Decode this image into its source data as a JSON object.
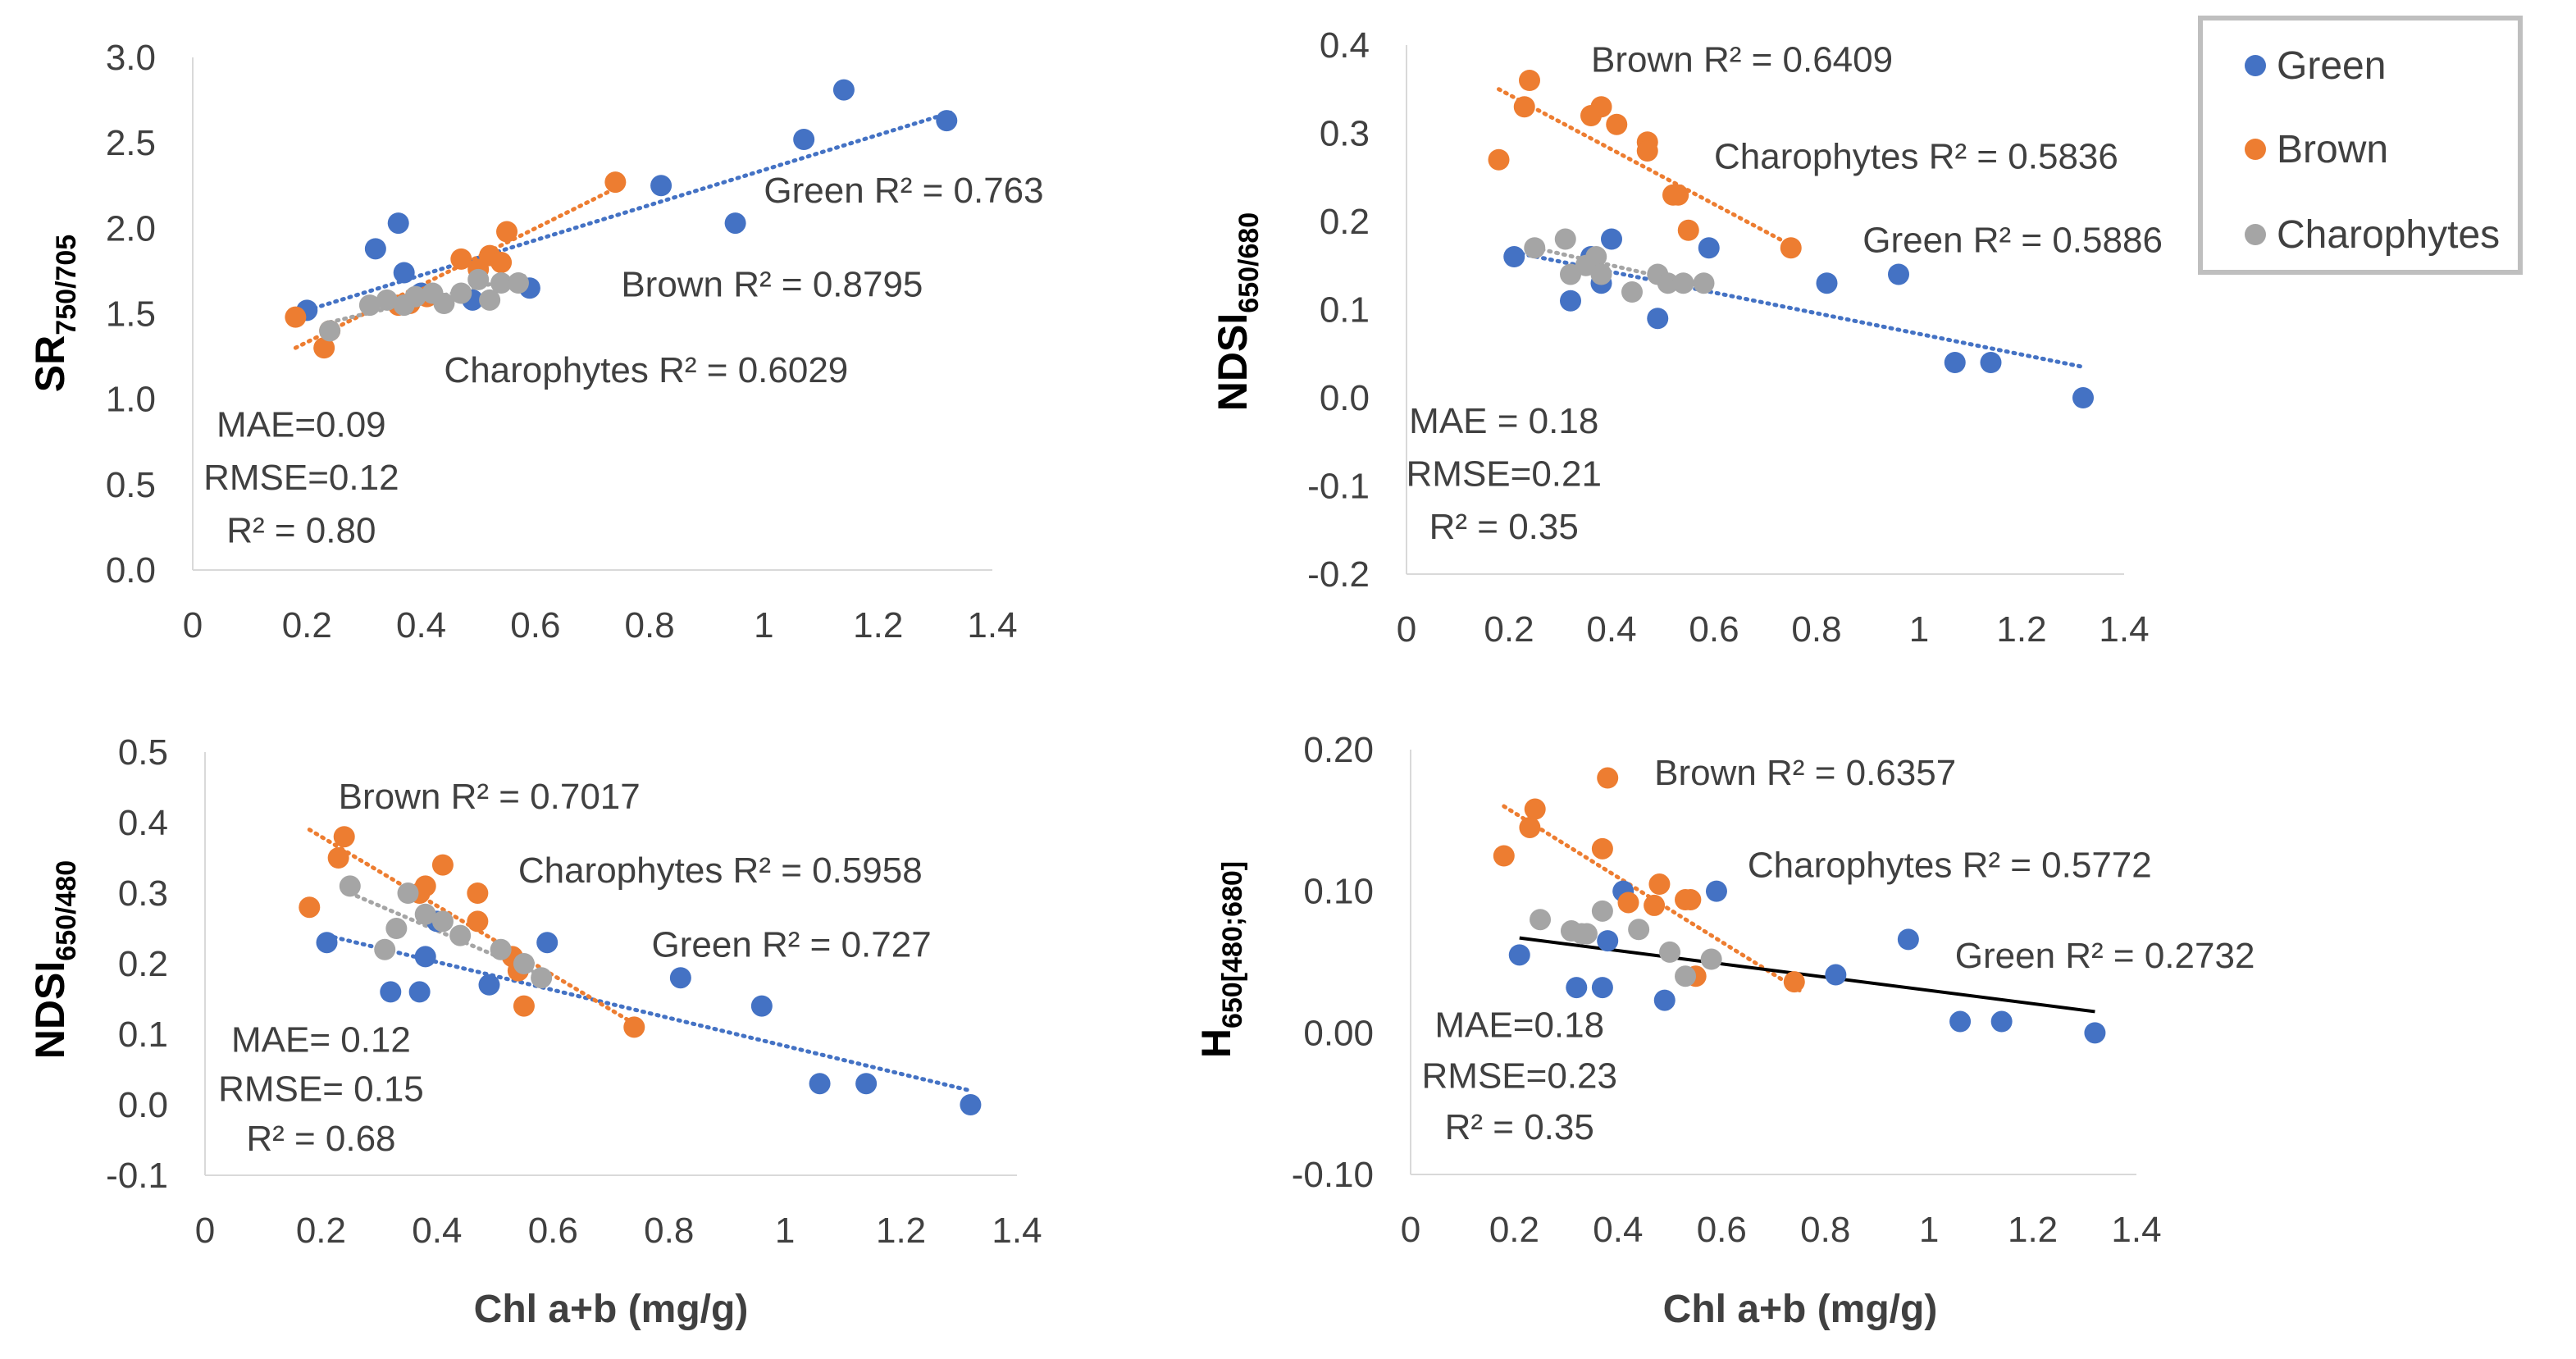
{
  "colors": {
    "Green": "#4472c4",
    "Brown": "#ed7d31",
    "Charophytes": "#a5a5a5",
    "overall": "#000000",
    "axis": "#d9d9d9"
  },
  "legend": {
    "placement": "top-right",
    "items": [
      "Green",
      "Brown",
      "Charophytes"
    ]
  },
  "chart_data": [
    {
      "type": "scatter",
      "ylabel_main": "SR",
      "ylabel_sub": "750/705",
      "xlabel": "",
      "xlim": [
        0,
        1.4
      ],
      "ylim": [
        0,
        3.0
      ],
      "x_ticks": [
        0,
        0.2,
        0.4,
        0.6,
        0.8,
        1,
        1.2,
        1.4
      ],
      "x_tick_labels": [
        "0",
        "0.2",
        "0.4",
        "0.6",
        "0.8",
        "1",
        "1.2",
        "1.4"
      ],
      "y_ticks": [
        0,
        0.5,
        1,
        1.5,
        2,
        2.5,
        3
      ],
      "y_tick_labels": [
        "0.0",
        "0.5",
        "1.0",
        "1.5",
        "2.0",
        "2.5",
        "3.0"
      ],
      "series": [
        {
          "name": "Green",
          "trend": "dotted",
          "x": [
            0.2,
            0.32,
            0.36,
            0.37,
            0.4,
            0.49,
            0.59,
            0.82,
            0.95,
            1.07,
            1.14,
            1.32
          ],
          "y": [
            1.52,
            1.88,
            2.03,
            1.74,
            1.62,
            1.58,
            1.65,
            2.25,
            2.03,
            2.52,
            2.81,
            2.63
          ],
          "fit_x": [
            0.2,
            1.33
          ],
          "fit_y": [
            1.52,
            2.68
          ]
        },
        {
          "name": "Brown",
          "trend": "dotted",
          "x": [
            0.18,
            0.23,
            0.24,
            0.36,
            0.38,
            0.41,
            0.47,
            0.5,
            0.52,
            0.54,
            0.55,
            0.74
          ],
          "y": [
            1.48,
            1.3,
            1.4,
            1.55,
            1.56,
            1.6,
            1.82,
            1.76,
            1.84,
            1.8,
            1.98,
            2.27
          ],
          "fit_x": [
            0.18,
            0.75
          ],
          "fit_y": [
            1.3,
            2.25
          ]
        },
        {
          "name": "Charophytes",
          "trend": "dotted",
          "x": [
            0.24,
            0.31,
            0.34,
            0.37,
            0.39,
            0.42,
            0.44,
            0.47,
            0.5,
            0.52,
            0.54,
            0.57
          ],
          "y": [
            1.4,
            1.55,
            1.58,
            1.55,
            1.6,
            1.62,
            1.56,
            1.62,
            1.7,
            1.58,
            1.68,
            1.68
          ],
          "fit_x": [
            0.24,
            0.58
          ],
          "fit_y": [
            1.45,
            1.72
          ]
        }
      ],
      "annotations": [
        {
          "text": "Green R² = 0.763",
          "x": 1.0,
          "y": 2.15,
          "anchor": "start"
        },
        {
          "text": "Brown R² = 0.8795",
          "x": 0.75,
          "y": 1.6,
          "anchor": "start"
        },
        {
          "text": "Charophytes R² = 0.6029",
          "x": 0.44,
          "y": 1.1,
          "anchor": "start"
        },
        {
          "text": "MAE=0.09",
          "x": 0.19,
          "y": 0.78,
          "anchor": "middle"
        },
        {
          "text": "RMSE=0.12",
          "x": 0.19,
          "y": 0.47,
          "anchor": "middle"
        },
        {
          "text": "R² = 0.80",
          "x": 0.19,
          "y": 0.16,
          "anchor": "middle"
        }
      ]
    },
    {
      "type": "scatter",
      "ylabel_main": "NDSI",
      "ylabel_sub": "650/680",
      "xlabel": "",
      "xlim": [
        0,
        1.4
      ],
      "ylim": [
        -0.2,
        0.4
      ],
      "x_ticks": [
        0,
        0.2,
        0.4,
        0.6,
        0.8,
        1,
        1.2,
        1.4
      ],
      "x_tick_labels": [
        "0",
        "0.2",
        "0.4",
        "0.6",
        "0.8",
        "1",
        "1.2",
        "1.4"
      ],
      "y_ticks": [
        -0.2,
        -0.1,
        0,
        0.1,
        0.2,
        0.3,
        0.4
      ],
      "y_tick_labels": [
        "-0.2",
        "-0.1",
        "0.0",
        "0.1",
        "0.2",
        "0.3",
        "0.4"
      ],
      "series": [
        {
          "name": "Green",
          "trend": "dotted",
          "x": [
            0.21,
            0.32,
            0.36,
            0.38,
            0.4,
            0.49,
            0.59,
            0.82,
            0.96,
            1.07,
            1.14,
            1.32
          ],
          "y": [
            0.16,
            0.11,
            0.16,
            0.13,
            0.18,
            0.09,
            0.17,
            0.13,
            0.14,
            0.04,
            0.04,
            0.0
          ],
          "fit_x": [
            0.21,
            1.32
          ],
          "fit_y": [
            0.165,
            0.035
          ]
        },
        {
          "name": "Brown",
          "trend": "dotted",
          "x": [
            0.18,
            0.23,
            0.24,
            0.36,
            0.38,
            0.41,
            0.47,
            0.47,
            0.52,
            0.53,
            0.55,
            0.75
          ],
          "y": [
            0.27,
            0.33,
            0.36,
            0.32,
            0.33,
            0.31,
            0.29,
            0.28,
            0.23,
            0.23,
            0.19,
            0.17
          ],
          "fit_x": [
            0.18,
            0.76
          ],
          "fit_y": [
            0.35,
            0.17
          ]
        },
        {
          "name": "Charophytes",
          "trend": "dotted",
          "x": [
            0.25,
            0.31,
            0.32,
            0.35,
            0.37,
            0.38,
            0.44,
            0.49,
            0.51,
            0.54,
            0.58
          ],
          "y": [
            0.17,
            0.18,
            0.14,
            0.15,
            0.16,
            0.14,
            0.12,
            0.14,
            0.13,
            0.13,
            0.13
          ],
          "fit_x": [
            0.25,
            0.59
          ],
          "fit_y": [
            0.17,
            0.125
          ]
        }
      ],
      "annotations": [
        {
          "text": "Brown R² = 0.6409",
          "x": 0.36,
          "y": 0.37,
          "anchor": "start"
        },
        {
          "text": "Charophytes R² = 0.5836",
          "x": 0.6,
          "y": 0.26,
          "anchor": "start"
        },
        {
          "text": "Green R² = 0.5886",
          "x": 0.89,
          "y": 0.165,
          "anchor": "start"
        },
        {
          "text": "MAE = 0.18",
          "x": 0.19,
          "y": -0.04,
          "anchor": "middle"
        },
        {
          "text": "RMSE=0.21",
          "x": 0.19,
          "y": -0.1,
          "anchor": "middle"
        },
        {
          "text": "R² = 0.35",
          "x": 0.19,
          "y": -0.16,
          "anchor": "middle"
        }
      ]
    },
    {
      "type": "scatter",
      "ylabel_main": "NDSI",
      "ylabel_sub": "650/480",
      "xlabel": "Chl a+b (mg/g)",
      "xlim": [
        0,
        1.4
      ],
      "ylim": [
        -0.1,
        0.5
      ],
      "x_ticks": [
        0,
        0.2,
        0.4,
        0.6,
        0.8,
        1,
        1.2,
        1.4
      ],
      "x_tick_labels": [
        "0",
        "0.2",
        "0.4",
        "0.6",
        "0.8",
        "1",
        "1.2",
        "1.4"
      ],
      "y_ticks": [
        -0.1,
        0,
        0.1,
        0.2,
        0.3,
        0.4,
        0.5
      ],
      "y_tick_labels": [
        "-0.1",
        "0.0",
        "0.1",
        "0.2",
        "0.3",
        "0.4",
        "0.5"
      ],
      "series": [
        {
          "name": "Green",
          "trend": "dotted",
          "x": [
            0.21,
            0.32,
            0.37,
            0.38,
            0.4,
            0.49,
            0.59,
            0.82,
            0.96,
            1.06,
            1.14,
            1.32
          ],
          "y": [
            0.23,
            0.16,
            0.16,
            0.21,
            0.26,
            0.17,
            0.23,
            0.18,
            0.14,
            0.03,
            0.03,
            0.0
          ],
          "fit_x": [
            0.21,
            1.32
          ],
          "fit_y": [
            0.24,
            0.02
          ]
        },
        {
          "name": "Brown",
          "trend": "dotted",
          "x": [
            0.18,
            0.23,
            0.24,
            0.37,
            0.38,
            0.41,
            0.47,
            0.47,
            0.53,
            0.54,
            0.55,
            0.74
          ],
          "y": [
            0.28,
            0.35,
            0.38,
            0.3,
            0.31,
            0.34,
            0.3,
            0.26,
            0.21,
            0.19,
            0.14,
            0.11
          ],
          "fit_x": [
            0.18,
            0.75
          ],
          "fit_y": [
            0.39,
            0.11
          ]
        },
        {
          "name": "Charophytes",
          "trend": "dotted",
          "x": [
            0.25,
            0.31,
            0.33,
            0.35,
            0.38,
            0.41,
            0.44,
            0.51,
            0.55,
            0.58
          ],
          "y": [
            0.31,
            0.22,
            0.25,
            0.3,
            0.27,
            0.26,
            0.24,
            0.22,
            0.2,
            0.18
          ],
          "fit_x": [
            0.25,
            0.59
          ],
          "fit_y": [
            0.3,
            0.18
          ]
        }
      ],
      "annotations": [
        {
          "text": "Brown R² = 0.7017",
          "x": 0.23,
          "y": 0.42,
          "anchor": "start"
        },
        {
          "text": "Charophytes R² = 0.5958",
          "x": 0.54,
          "y": 0.315,
          "anchor": "start"
        },
        {
          "text": "Green R² = 0.727",
          "x": 0.77,
          "y": 0.21,
          "anchor": "start"
        },
        {
          "text": "MAE= 0.12",
          "x": 0.2,
          "y": 0.075,
          "anchor": "middle"
        },
        {
          "text": "RMSE= 0.15",
          "x": 0.2,
          "y": 0.005,
          "anchor": "middle"
        },
        {
          "text": "R² = 0.68",
          "x": 0.2,
          "y": -0.065,
          "anchor": "middle"
        }
      ]
    },
    {
      "type": "scatter",
      "ylabel_main": "H",
      "ylabel_sub": "650[480;680]",
      "xlabel": "Chl a+b (mg/g)",
      "xlim": [
        0,
        1.4
      ],
      "ylim": [
        -0.1,
        0.2
      ],
      "x_ticks": [
        0,
        0.2,
        0.4,
        0.6,
        0.8,
        1,
        1.2,
        1.4
      ],
      "x_tick_labels": [
        "0",
        "0.2",
        "0.4",
        "0.6",
        "0.8",
        "1",
        "1.2",
        "1.4"
      ],
      "y_ticks": [
        -0.1,
        0,
        0.1,
        0.2
      ],
      "y_tick_labels": [
        "-0.10",
        "0.00",
        "0.10",
        "0.20"
      ],
      "series": [
        {
          "name": "Green",
          "trend": "none",
          "x": [
            0.21,
            0.32,
            0.37,
            0.38,
            0.41,
            0.49,
            0.59,
            0.82,
            0.96,
            1.06,
            1.14,
            1.32
          ],
          "y": [
            0.055,
            0.032,
            0.032,
            0.065,
            0.1,
            0.023,
            0.1,
            0.041,
            0.066,
            0.008,
            0.008,
            0.0
          ],
          "fit_x": [],
          "fit_y": []
        },
        {
          "name": "Brown",
          "trend": "dotted",
          "x": [
            0.18,
            0.23,
            0.24,
            0.37,
            0.38,
            0.42,
            0.47,
            0.48,
            0.53,
            0.54,
            0.55,
            0.74
          ],
          "y": [
            0.125,
            0.145,
            0.158,
            0.13,
            0.18,
            0.092,
            0.09,
            0.105,
            0.094,
            0.094,
            0.04,
            0.036
          ],
          "fit_x": [
            0.18,
            0.75
          ],
          "fit_y": [
            0.16,
            0.03
          ]
        },
        {
          "name": "Charophytes",
          "trend": "none",
          "x": [
            0.25,
            0.31,
            0.33,
            0.34,
            0.37,
            0.44,
            0.5,
            0.53,
            0.58
          ],
          "y": [
            0.08,
            0.072,
            0.07,
            0.07,
            0.086,
            0.073,
            0.057,
            0.04,
            0.052
          ],
          "fit_x": [],
          "fit_y": []
        },
        {
          "name": "overall",
          "trend": "solid",
          "x": [],
          "y": [],
          "fit_x": [
            0.21,
            1.32
          ],
          "fit_y": [
            0.067,
            0.015
          ]
        }
      ],
      "annotations": [
        {
          "text": "Brown R² = 0.6357",
          "x": 0.47,
          "y": 0.175,
          "anchor": "start"
        },
        {
          "text": "Charophytes R² = 0.5772",
          "x": 0.65,
          "y": 0.11,
          "anchor": "start"
        },
        {
          "text": "Green R² = 0.2732",
          "x": 1.05,
          "y": 0.046,
          "anchor": "start"
        },
        {
          "text": "MAE=0.18",
          "x": 0.21,
          "y": -0.003,
          "anchor": "middle"
        },
        {
          "text": "RMSE=0.23",
          "x": 0.21,
          "y": -0.039,
          "anchor": "middle"
        },
        {
          "text": "R² = 0.35",
          "x": 0.21,
          "y": -0.075,
          "anchor": "middle"
        }
      ]
    }
  ]
}
